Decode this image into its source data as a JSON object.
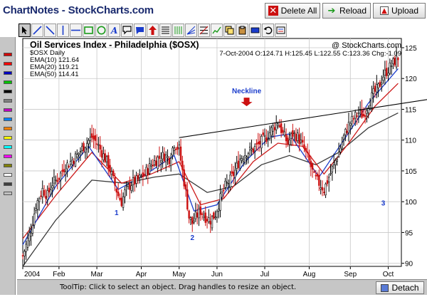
{
  "app": {
    "title": "ChartNotes - StockCharts.com"
  },
  "buttons": {
    "delete_all": "Delete All",
    "reload": "Reload",
    "upload": "Upload",
    "detach": "Detach"
  },
  "toolbar": {
    "tools": [
      "select",
      "line",
      "line-tool-2",
      "vertical-line",
      "horizontal-line",
      "rectangle",
      "ellipse",
      "text",
      "callout",
      "comment",
      "arrow",
      "horizontal-lines",
      "vertical-lines",
      "fan",
      "fibonacci",
      "trend-tool",
      "copy",
      "paste",
      "move",
      "undo",
      "clear"
    ]
  },
  "palette": {
    "colors": [
      "#d00000",
      "#ff0000",
      "#0000c0",
      "#00c000",
      "#000000",
      "#808080",
      "#c000c0",
      "#0080ff",
      "#ff8000",
      "#ffff00",
      "#00ffff",
      "#ff00ff",
      "#808000",
      "#ffffff",
      "#404040",
      "#c0c0c0"
    ]
  },
  "chart_header": {
    "title": "Oil Services Index - Philadelphia ($OSX)",
    "watermark": "@ StockCharts.com",
    "symbol_line": "$OSX Daily",
    "quote_line": "7-Oct-2004 O:124.71 H:125.45 L:122.55 C:123.36 Chg:-1.09",
    "legend": [
      {
        "label": "EMA(10) 121.64",
        "color": "#1a3ccc"
      },
      {
        "label": "EMA(20) 119.21",
        "color": "#cc1a1a"
      },
      {
        "label": "EMA(50) 114.41",
        "color": "#1a1a1a"
      }
    ]
  },
  "annotations": {
    "neckline": "Neckline",
    "labels": [
      {
        "text": "1",
        "x": 57,
        "y": 97.8
      },
      {
        "text": "2",
        "x": 103,
        "y": 93.8
      },
      {
        "text": "3",
        "x": 219,
        "y": 99.4
      }
    ],
    "trendline": {
      "x1": 95,
      "y1": 110.4,
      "x2": 285,
      "y2": 118.2
    },
    "arrow": {
      "x": 136,
      "y": 115.5
    }
  },
  "chart_data": {
    "type": "candlestick",
    "x_axis": {
      "labels": [
        "2004",
        "Feb",
        "Mar",
        "Apr",
        "May",
        "Jun",
        "Jul",
        "Aug",
        "Sep",
        "Oct"
      ],
      "positions": [
        0,
        22,
        45,
        72,
        95,
        118,
        147,
        174,
        199,
        222
      ],
      "range": [
        0,
        230
      ]
    },
    "y_axis": {
      "ticks": [
        90,
        95,
        100,
        105,
        110,
        115,
        120,
        125
      ],
      "range": [
        89.5,
        126.5
      ]
    },
    "grid": true,
    "price_points": [
      [
        0,
        91.2
      ],
      [
        5,
        95.5
      ],
      [
        8,
        99.5
      ],
      [
        12,
        102.0
      ],
      [
        15,
        101.0
      ],
      [
        18,
        103.0
      ],
      [
        22,
        104.0
      ],
      [
        25,
        105.5
      ],
      [
        29,
        106.5
      ],
      [
        33,
        107.5
      ],
      [
        37,
        109.0
      ],
      [
        42,
        110.5
      ],
      [
        45,
        109.5
      ],
      [
        48,
        108.0
      ],
      [
        52,
        106.0
      ],
      [
        55,
        103.5
      ],
      [
        58,
        101.0
      ],
      [
        60,
        100.0
      ],
      [
        62,
        101.5
      ],
      [
        66,
        103.0
      ],
      [
        70,
        103.5
      ],
      [
        74,
        104.5
      ],
      [
        78,
        106.0
      ],
      [
        82,
        107.0
      ],
      [
        86,
        107.5
      ],
      [
        89,
        107.0
      ],
      [
        92,
        109.5
      ],
      [
        95,
        108.5
      ],
      [
        97,
        105.0
      ],
      [
        99,
        101.5
      ],
      [
        101,
        97.5
      ],
      [
        103,
        96.5
      ],
      [
        105,
        97.5
      ],
      [
        108,
        98.5
      ],
      [
        111,
        97.5
      ],
      [
        114,
        97.0
      ],
      [
        117,
        98.0
      ],
      [
        120,
        100.5
      ],
      [
        123,
        102.5
      ],
      [
        126,
        103.5
      ],
      [
        129,
        105.0
      ],
      [
        132,
        107.0
      ],
      [
        136,
        108.0
      ],
      [
        140,
        108.5
      ],
      [
        144,
        109.5
      ],
      [
        148,
        110.5
      ],
      [
        152,
        112.0
      ],
      [
        155,
        113.0
      ],
      [
        158,
        111.0
      ],
      [
        161,
        109.5
      ],
      [
        164,
        111.0
      ],
      [
        167,
        110.5
      ],
      [
        171,
        108.5
      ],
      [
        174,
        106.5
      ],
      [
        177,
        104.0
      ],
      [
        180,
        103.0
      ],
      [
        183,
        102.0
      ],
      [
        186,
        104.0
      ],
      [
        189,
        106.0
      ],
      [
        192,
        108.0
      ],
      [
        195,
        110.5
      ],
      [
        198,
        112.5
      ],
      [
        201,
        113.5
      ],
      [
        204,
        114.5
      ],
      [
        207,
        114.0
      ],
      [
        210,
        116.0
      ],
      [
        213,
        117.5
      ],
      [
        216,
        118.5
      ],
      [
        219,
        120.5
      ],
      [
        222,
        121.5
      ],
      [
        225,
        122.5
      ],
      [
        228,
        123.4
      ]
    ],
    "ema10": [
      [
        0,
        93.0
      ],
      [
        20,
        102.5
      ],
      [
        40,
        109.0
      ],
      [
        58,
        102.0
      ],
      [
        75,
        104.5
      ],
      [
        92,
        107.5
      ],
      [
        104,
        98.5
      ],
      [
        118,
        99.5
      ],
      [
        135,
        106.5
      ],
      [
        150,
        110.5
      ],
      [
        162,
        111.0
      ],
      [
        180,
        104.0
      ],
      [
        195,
        110.0
      ],
      [
        210,
        116.0
      ],
      [
        228,
        121.6
      ]
    ],
    "ema20": [
      [
        0,
        94.0
      ],
      [
        20,
        101.0
      ],
      [
        42,
        108.0
      ],
      [
        60,
        103.0
      ],
      [
        78,
        104.5
      ],
      [
        95,
        106.5
      ],
      [
        108,
        99.5
      ],
      [
        122,
        100.5
      ],
      [
        140,
        106.5
      ],
      [
        155,
        109.5
      ],
      [
        170,
        109.0
      ],
      [
        183,
        104.5
      ],
      [
        198,
        109.5
      ],
      [
        214,
        115.5
      ],
      [
        228,
        119.2
      ]
    ],
    "ema50": [
      [
        0,
        89.5
      ],
      [
        20,
        97.0
      ],
      [
        42,
        103.5
      ],
      [
        62,
        103.0
      ],
      [
        80,
        104.0
      ],
      [
        95,
        104.5
      ],
      [
        112,
        101.5
      ],
      [
        128,
        102.5
      ],
      [
        145,
        106.0
      ],
      [
        162,
        107.5
      ],
      [
        178,
        106.0
      ],
      [
        192,
        108.0
      ],
      [
        210,
        112.0
      ],
      [
        228,
        114.4
      ]
    ]
  }
}
